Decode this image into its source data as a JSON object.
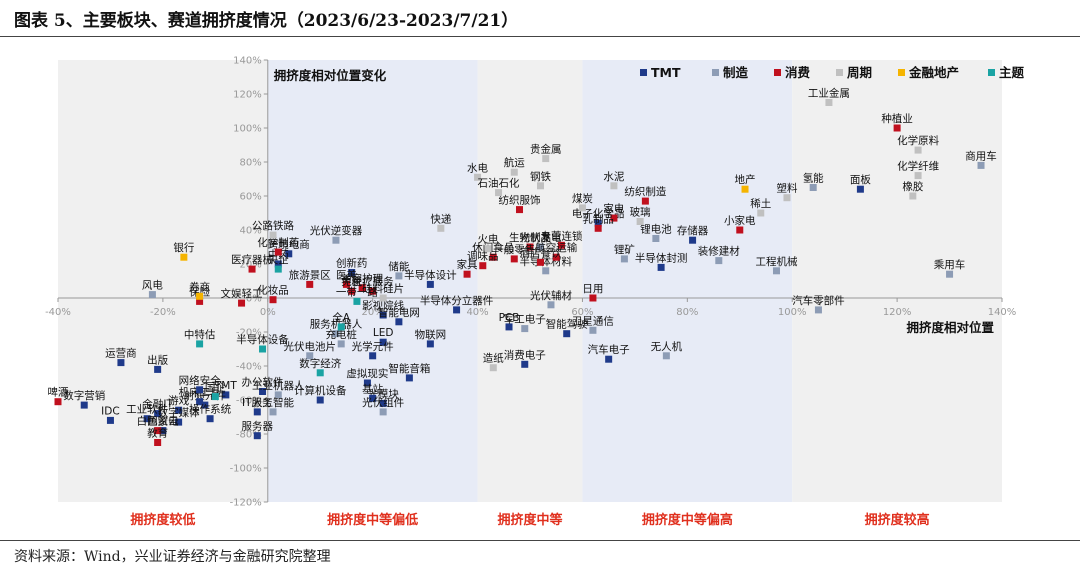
{
  "figure_title": "图表 5、主要板块、赛道拥挤度情况（2023/6/23-2023/7/21）",
  "source": "资料来源：Wind，兴业证券经济与金融研究院整理",
  "chart_data": {
    "type": "scatter",
    "title": "",
    "xlabel": "拥挤度相对位置",
    "ylabel": "拥挤度相对位置变化",
    "xlim": [
      -40,
      140
    ],
    "ylim": [
      -120,
      140
    ],
    "x_ticks": [
      "-40%",
      "-20%",
      "0%",
      "20%",
      "40%",
      "60%",
      "80%",
      "100%",
      "120%",
      "140%"
    ],
    "y_ticks": [
      "-120%",
      "-100%",
      "-80%",
      "-60%",
      "-40%",
      "-20%",
      "0%",
      "20%",
      "40%",
      "60%",
      "80%",
      "100%",
      "120%",
      "140%"
    ],
    "zones": [
      {
        "label": "拥挤度较低",
        "from": -40,
        "to": 0,
        "color": "#f0f0f0"
      },
      {
        "label": "拥挤度中等偏低",
        "from": 0,
        "to": 40,
        "color": "#e7ebf6"
      },
      {
        "label": "拥挤度中等",
        "from": 40,
        "to": 60,
        "color": "#f0f0f0"
      },
      {
        "label": "拥挤度中等偏高",
        "from": 60,
        "to": 100,
        "color": "#e7ebf6"
      },
      {
        "label": "拥挤度较高",
        "from": 100,
        "to": 140,
        "color": "#f0f0f0"
      }
    ],
    "zone_label_color": "#e0301e",
    "legend_position": "top-right",
    "series": [
      {
        "name": "TMT",
        "color": "#1f3a8a",
        "points": [
          {
            "label": "面板",
            "x": 113,
            "y": 64
          },
          {
            "label": "存储器",
            "x": 81,
            "y": 34
          },
          {
            "label": "半导体封测",
            "x": 75,
            "y": 18
          },
          {
            "label": "电子化学品",
            "x": 63,
            "y": 44
          },
          {
            "label": "半导体设计",
            "x": 31,
            "y": 8
          },
          {
            "label": "半导体分立器件",
            "x": 36,
            "y": -7
          },
          {
            "label": "影视院线",
            "x": 22,
            "y": -10
          },
          {
            "label": "智能电网",
            "x": 25,
            "y": -14
          },
          {
            "label": "PCB",
            "x": 46,
            "y": -17
          },
          {
            "label": "智能驾驶",
            "x": 57,
            "y": -21
          },
          {
            "label": "LED",
            "x": 22,
            "y": -26
          },
          {
            "label": "物联网",
            "x": 31,
            "y": -27
          },
          {
            "label": "光学元件",
            "x": 20,
            "y": -34
          },
          {
            "label": "消费电子",
            "x": 49,
            "y": -39
          },
          {
            "label": "汽车电子",
            "x": 65,
            "y": -36
          },
          {
            "label": "智能音箱",
            "x": 27,
            "y": -47
          },
          {
            "label": "虚拟现实",
            "x": 19,
            "y": -50
          },
          {
            "label": "光模块",
            "x": 22,
            "y": -62
          },
          {
            "label": "计算机设备",
            "x": 10,
            "y": -60
          },
          {
            "label": "基站",
            "x": 20,
            "y": -59
          },
          {
            "label": "IT服务",
            "x": -2,
            "y": -67
          },
          {
            "label": "服务器",
            "x": -2,
            "y": -81
          },
          {
            "label": "运营商",
            "x": -28,
            "y": -38
          },
          {
            "label": "出版",
            "x": -21,
            "y": -42
          },
          {
            "label": "TMT",
            "x": -8,
            "y": -57
          },
          {
            "label": "游戏",
            "x": -17,
            "y": -66
          },
          {
            "label": "射频元件",
            "x": -12,
            "y": -63
          },
          {
            "label": "机床工具",
            "x": -13,
            "y": -61
          },
          {
            "label": "数字营销",
            "x": -35,
            "y": -63
          },
          {
            "label": "金融IT",
            "x": -21,
            "y": -68
          },
          {
            "label": "操作系统",
            "x": -11,
            "y": -71
          },
          {
            "label": "IDC",
            "x": -30,
            "y": -72
          },
          {
            "label": "数字媒体",
            "x": -17,
            "y": -73
          },
          {
            "label": "网络安全",
            "x": -13,
            "y": -54
          },
          {
            "label": "办公软件",
            "x": -1,
            "y": -55
          },
          {
            "label": "工业软件",
            "x": -23,
            "y": -71
          },
          {
            "label": "国资云",
            "x": -20,
            "y": -78
          },
          {
            "label": "跨境电商",
            "x": 4,
            "y": 26
          },
          {
            "label": "中药",
            "x": 2,
            "y": 20
          },
          {
            "label": "创新药",
            "x": 16,
            "y": 15
          }
        ]
      },
      {
        "name": "制造",
        "color": "#8d9cb5",
        "points": [
          {
            "label": "商用车",
            "x": 136,
            "y": 78
          },
          {
            "label": "乘用车",
            "x": 130,
            "y": 14
          },
          {
            "label": "氢能",
            "x": 104,
            "y": 65
          },
          {
            "label": "工程机械",
            "x": 97,
            "y": 16
          },
          {
            "label": "汽车零部件",
            "x": 105,
            "y": -7
          },
          {
            "label": "装修建材",
            "x": 86,
            "y": 22
          },
          {
            "label": "锂电池",
            "x": 74,
            "y": 35
          },
          {
            "label": "锂矿",
            "x": 68,
            "y": 23
          },
          {
            "label": "光伏发电",
            "x": 52,
            "y": 30
          },
          {
            "label": "风电",
            "x": -22,
            "y": 2
          },
          {
            "label": "光伏逆变器",
            "x": 13,
            "y": 34
          },
          {
            "label": "储能",
            "x": 25,
            "y": 13
          },
          {
            "label": "光伏辅材",
            "x": 54,
            "y": -4
          },
          {
            "label": "军工电子",
            "x": 49,
            "y": -18
          },
          {
            "label": "卫星通信",
            "x": 62,
            "y": -19
          },
          {
            "label": "无人机",
            "x": 76,
            "y": -34
          },
          {
            "label": "光伏电池片",
            "x": 8,
            "y": -34
          },
          {
            "label": "光伏组件",
            "x": 22,
            "y": -67
          },
          {
            "label": "工业机器人",
            "x": 2,
            "y": -57
          },
          {
            "label": "服务机器人",
            "x": 13,
            "y": -21
          },
          {
            "label": "半导体材料",
            "x": 53,
            "y": 16
          },
          {
            "label": "充电桩",
            "x": 14,
            "y": -27
          },
          {
            "label": "人工智能",
            "x": 1,
            "y": -67
          }
        ]
      },
      {
        "name": "消费",
        "color": "#c0101e",
        "points": [
          {
            "label": "种植业",
            "x": 120,
            "y": 100
          },
          {
            "label": "纺织制造",
            "x": 72,
            "y": 57
          },
          {
            "label": "小家电",
            "x": 90,
            "y": 40
          },
          {
            "label": "家电",
            "x": 66,
            "y": 47
          },
          {
            "label": "纺织服饰",
            "x": 48,
            "y": 52
          },
          {
            "label": "乳制品",
            "x": 63,
            "y": 41
          },
          {
            "label": "生物制品",
            "x": 50,
            "y": 30
          },
          {
            "label": "专营连锁",
            "x": 56,
            "y": 31
          },
          {
            "label": "航空运输",
            "x": 55,
            "y": 24
          },
          {
            "label": "休闲食品",
            "x": 43,
            "y": 24
          },
          {
            "label": "调味品",
            "x": 41,
            "y": 19
          },
          {
            "label": "酒店餐饮",
            "x": 52,
            "y": 21
          },
          {
            "label": "一般零售",
            "x": 47,
            "y": 23
          },
          {
            "label": "家具",
            "x": 38,
            "y": 14
          },
          {
            "label": "日用",
            "x": 62,
            "y": 0
          },
          {
            "label": "化学制药",
            "x": 2,
            "y": 27
          },
          {
            "label": "医美",
            "x": 15,
            "y": 8
          },
          {
            "label": "美容护理",
            "x": 18,
            "y": 6
          },
          {
            "label": "免税",
            "x": 16,
            "y": 4
          },
          {
            "label": "旅游景区",
            "x": 8,
            "y": 8
          },
          {
            "label": "保险",
            "x": -13,
            "y": -2
          },
          {
            "label": "文娱轻工",
            "x": -5,
            "y": -3
          },
          {
            "label": "化妆品",
            "x": 1,
            "y": -1
          },
          {
            "label": "医疗服务",
            "x": 20,
            "y": 4
          },
          {
            "label": "啤酒",
            "x": -40,
            "y": -61
          },
          {
            "label": "白色家电",
            "x": -21,
            "y": -78
          },
          {
            "label": "教育",
            "x": -21,
            "y": -85
          },
          {
            "label": "医疗器械",
            "x": -3,
            "y": 17
          }
        ]
      },
      {
        "name": "周期",
        "color": "#c0c0c0",
        "points": [
          {
            "label": "工业金属",
            "x": 107,
            "y": 115
          },
          {
            "label": "化学原料",
            "x": 124,
            "y": 87
          },
          {
            "label": "化学纤维",
            "x": 124,
            "y": 72
          },
          {
            "label": "橡胶",
            "x": 123,
            "y": 60
          },
          {
            "label": "塑料",
            "x": 99,
            "y": 59
          },
          {
            "label": "稀土",
            "x": 94,
            "y": 50
          },
          {
            "label": "贵金属",
            "x": 53,
            "y": 82
          },
          {
            "label": "钢铁",
            "x": 52,
            "y": 66
          },
          {
            "label": "水电",
            "x": 40,
            "y": 71
          },
          {
            "label": "航运",
            "x": 47,
            "y": 74
          },
          {
            "label": "石油石化",
            "x": 44,
            "y": 62
          },
          {
            "label": "水泥",
            "x": 66,
            "y": 66
          },
          {
            "label": "煤炭",
            "x": 60,
            "y": 53
          },
          {
            "label": "玻璃",
            "x": 71,
            "y": 45
          },
          {
            "label": "快递",
            "x": 33,
            "y": 41
          },
          {
            "label": "火电",
            "x": 42,
            "y": 29
          },
          {
            "label": "公路铁路",
            "x": 1,
            "y": 37
          },
          {
            "label": "造纸",
            "x": 43,
            "y": -41
          },
          {
            "label": "硅料硅片",
            "x": 22,
            "y": 0
          }
        ]
      },
      {
        "name": "金融地产",
        "color": "#f5b400",
        "points": [
          {
            "label": "地产",
            "x": 91,
            "y": 64
          },
          {
            "label": "银行",
            "x": -16,
            "y": 24
          },
          {
            "label": "券商",
            "x": -13,
            "y": 1
          }
        ]
      },
      {
        "name": "主题",
        "color": "#1aa3a3",
        "points": [
          {
            "label": "央企",
            "x": 2,
            "y": 17
          },
          {
            "label": "中特估",
            "x": -13,
            "y": -27
          },
          {
            "label": "半导体设备",
            "x": -1,
            "y": -30
          },
          {
            "label": "数字经济",
            "x": 10,
            "y": -44
          },
          {
            "label": "一带一路",
            "x": 17,
            "y": -2
          },
          {
            "label": "全A",
            "x": 14,
            "y": -17
          },
          {
            "label": "国企",
            "x": -10,
            "y": -58
          }
        ]
      }
    ]
  }
}
